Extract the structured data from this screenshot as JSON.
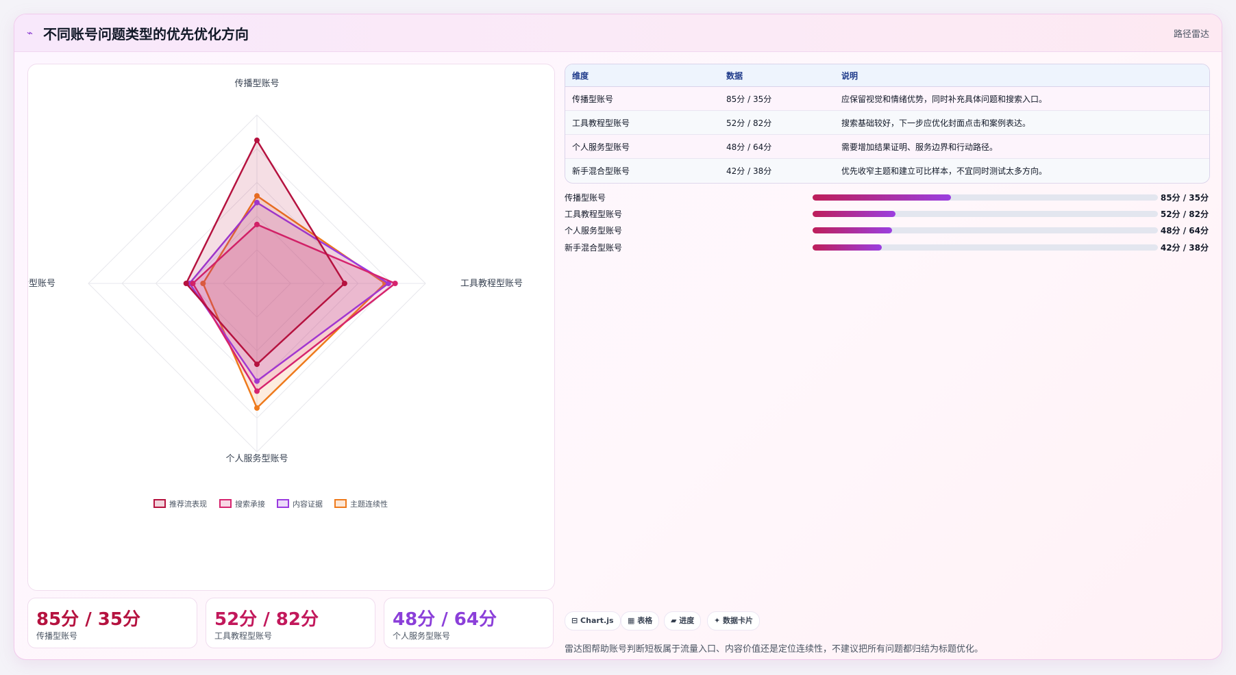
{
  "header": {
    "title": "不同账号问题类型的优先优化方向",
    "tag": "路径雷达"
  },
  "colors": {
    "推荐流表现": "#b5123f",
    "搜索承接": "#d6246e",
    "内容证据": "#9a3be0",
    "主题连续性": "#ee7a1c"
  },
  "chart_data": {
    "type": "radar",
    "axes": [
      "传播型账号",
      "工具教程型账号",
      "个人服务型账号",
      "新手混合型账号"
    ],
    "rmax": 100,
    "series": [
      {
        "name": "推荐流表现",
        "values": [
          85,
          52,
          48,
          42
        ]
      },
      {
        "name": "搜索承接",
        "values": [
          35,
          82,
          64,
          38
        ]
      },
      {
        "name": "内容证据",
        "values": [
          48,
          78,
          58,
          40
        ]
      },
      {
        "name": "主题连续性",
        "values": [
          52,
          76,
          74,
          32
        ]
      }
    ],
    "legend_position": "bottom"
  },
  "kpis": [
    {
      "value": "85分 / 35分",
      "label": "传播型账号",
      "color": "#b5123f"
    },
    {
      "value": "52分 / 82分",
      "label": "工具教程型账号",
      "color": "#c2185b"
    },
    {
      "value": "48分 / 64分",
      "label": "个人服务型账号",
      "color": "#8b3fd9"
    }
  ],
  "table": {
    "headers": [
      "维度",
      "数据",
      "说明"
    ],
    "rows": [
      [
        "传播型账号",
        "85分 / 35分",
        "应保留视觉和情绪优势，同时补充具体问题和搜索入口。"
      ],
      [
        "工具教程型账号",
        "52分 / 82分",
        "搜索基础较好，下一步应优化封面点击和案例表达。"
      ],
      [
        "个人服务型账号",
        "48分 / 64分",
        "需要增加结果证明、服务边界和行动路径。"
      ],
      [
        "新手混合型账号",
        "42分 / 38分",
        "优先收窄主题和建立可比样本，不宜同时测试太多方向。"
      ]
    ]
  },
  "progress": [
    {
      "label": "传播型账号",
      "value_text": "85分 / 35分",
      "fraction": 0.4
    },
    {
      "label": "工具教程型账号",
      "value_text": "52分 / 82分",
      "fraction": 0.24
    },
    {
      "label": "个人服务型账号",
      "value_text": "48分 / 64分",
      "fraction": 0.23
    },
    {
      "label": "新手混合型账号",
      "value_text": "42分 / 38分",
      "fraction": 0.2
    }
  ],
  "chips": [
    {
      "icon": "table-icon",
      "label": "⊟ Chart.js"
    },
    {
      "icon": "grid-icon",
      "label": "▦ 表格"
    },
    {
      "icon": "bar-icon",
      "label": "▰ 进度"
    },
    {
      "icon": "sparkle-icon",
      "label": "✦ 数据卡片"
    }
  ],
  "footnote": "雷达图帮助账号判断短板属于流量入口、内容价值还是定位连续性，不建议把所有问题都归结为标题优化。"
}
